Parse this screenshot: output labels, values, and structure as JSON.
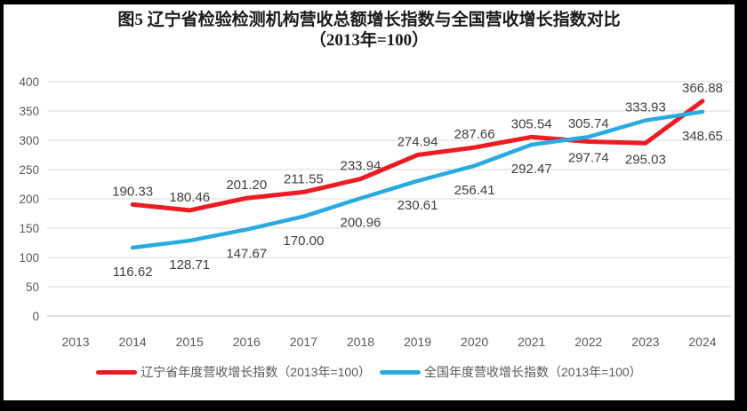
{
  "title": {
    "line1": "图5  辽宁省检验检测机构营收总额增长指数与全国营收增长指数对比",
    "line2": "（2013年=100）"
  },
  "chart_data": {
    "type": "line",
    "categories": [
      "2013",
      "2014",
      "2015",
      "2016",
      "2017",
      "2018",
      "2019",
      "2020",
      "2021",
      "2022",
      "2023",
      "2024"
    ],
    "series": [
      {
        "name": "辽宁省年度营收增长指数（2013年=100）",
        "color": "#ed1c24",
        "start_index": 1,
        "values": [
          190.33,
          180.46,
          201.2,
          211.55,
          233.94,
          274.94,
          287.66,
          305.54,
          297.74,
          295.03,
          366.88
        ]
      },
      {
        "name": "全国年度营收增长指数（2013年=100）",
        "color": "#29abe2",
        "start_index": 1,
        "values": [
          116.62,
          128.71,
          147.67,
          170,
          200.96,
          230.61,
          256.41,
          292.47,
          305.74,
          333.93,
          348.65
        ]
      }
    ],
    "y_axis": {
      "min": 0,
      "max": 400,
      "step": 50,
      "tick_labels": [
        "0",
        "50",
        "100",
        "150",
        "200",
        "250",
        "300",
        "350",
        "400"
      ]
    },
    "grid": true,
    "data_labels": true,
    "legend_position": "bottom",
    "styles": {
      "gridline_color": "#d9d9d9",
      "axis_line_color": "#bfbfbf",
      "axis_text_color": "#595959",
      "label_text_color": "#3f3f3f",
      "frame_color": "#000000",
      "background": "#ffffff"
    }
  }
}
